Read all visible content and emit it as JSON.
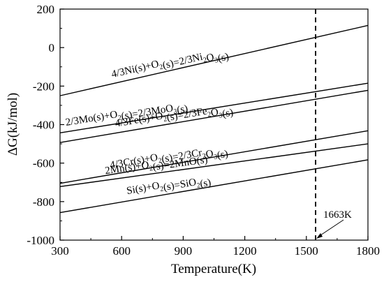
{
  "chart_data": {
    "type": "line",
    "title": "",
    "xlabel": "Temperature(K)",
    "ylabel": "ΔG(kJ/mol)",
    "xlim": [
      300,
      1800
    ],
    "ylim": [
      -1000,
      200
    ],
    "xticks": [
      300,
      600,
      900,
      1200,
      1500,
      1800
    ],
    "yticks": [
      200,
      0,
      -200,
      -400,
      -600,
      -800,
      -1000
    ],
    "grid": false,
    "series": [
      {
        "name": "4/3Ni(s)+O2(s)=2/3Ni2O3(s)",
        "label_parts": [
          [
            "4/3Ni(s)+O",
            ""
          ],
          [
            "2",
            "sub"
          ],
          [
            "(s)=2/3Ni",
            ""
          ],
          [
            "2",
            "sub"
          ],
          [
            "O",
            ""
          ],
          [
            "3",
            "sub"
          ],
          [
            "(s)",
            ""
          ]
        ],
        "x": [
          300,
          1800
        ],
        "y": [
          -250,
          115
        ]
      },
      {
        "name": "2/3Mo(s)+O2(s)=2/3MoO3(s)",
        "label_parts": [
          [
            "2/3Mo(s)+O",
            ""
          ],
          [
            "2",
            "sub"
          ],
          [
            "(s)=2/3MoO",
            ""
          ],
          [
            "3",
            "sub"
          ],
          [
            "(s)",
            ""
          ]
        ],
        "x": [
          300,
          1800
        ],
        "y": [
          -443,
          -185
        ]
      },
      {
        "name": "4/3Fe(s)+O2(s)=2/3Fe2O3(s)",
        "label_parts": [
          [
            "4/3Fe(s)+O",
            ""
          ],
          [
            "2",
            "sub"
          ],
          [
            "(s)=2/3Fe",
            ""
          ],
          [
            "2",
            "sub"
          ],
          [
            "O",
            ""
          ],
          [
            "3",
            "sub"
          ],
          [
            "(s)",
            ""
          ]
        ],
        "x": [
          300,
          1800
        ],
        "y": [
          -493,
          -222
        ]
      },
      {
        "name": "4/3Cr(s)+O2(s)=2/3Cr2O3(s)",
        "label_parts": [
          [
            "4/3Cr(s)+O",
            ""
          ],
          [
            "2",
            "sub"
          ],
          [
            "(s)=2/3Cr",
            ""
          ],
          [
            "2",
            "sub"
          ],
          [
            "O",
            ""
          ],
          [
            "3",
            "sub"
          ],
          [
            "(s)",
            ""
          ]
        ],
        "x": [
          300,
          1800
        ],
        "y": [
          -705,
          -432
        ]
      },
      {
        "name": "2Mn(s)+O2(s)=2MnO(s)",
        "label_parts": [
          [
            "2Mn(s)+O",
            ""
          ],
          [
            "2",
            "sub"
          ],
          [
            "(s)=2MnO(s)",
            ""
          ]
        ],
        "x": [
          300,
          1800
        ],
        "y": [
          -722,
          -500
        ]
      },
      {
        "name": "Si(s)+O2(s)=SiO2(s)",
        "label_parts": [
          [
            "Si(s)+O",
            ""
          ],
          [
            "2",
            "sub"
          ],
          [
            "(s)=SiO",
            ""
          ],
          [
            "2",
            "sub"
          ],
          [
            "(s)",
            ""
          ]
        ],
        "x": [
          300,
          1800
        ],
        "y": [
          -857,
          -583
        ]
      }
    ],
    "reference_line": {
      "x": 1545,
      "style": "dashed"
    },
    "annotation": {
      "text": "1663K"
    }
  }
}
